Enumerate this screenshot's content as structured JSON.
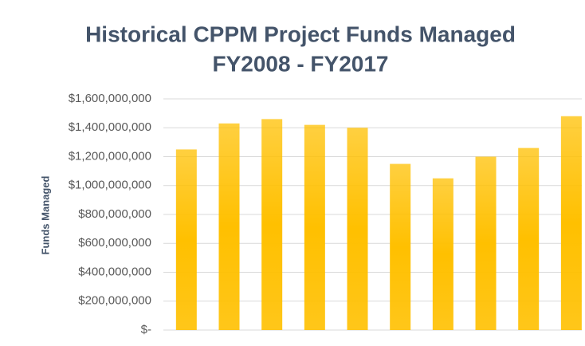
{
  "chart_data": {
    "type": "bar",
    "title_lines": [
      "Historical CPPM Project Funds Managed",
      "FY2008 - FY2017"
    ],
    "y_label": "Funds Managed",
    "categories": [
      null,
      null,
      null,
      null,
      null,
      null,
      null,
      null,
      null,
      null
    ],
    "values": [
      1250000000,
      1430000000,
      1460000000,
      1420000000,
      1400000000,
      1150000000,
      1050000000,
      1200000000,
      1260000000,
      1480000000
    ],
    "color": "#ffc000",
    "ylim": [
      0,
      1600000000
    ],
    "yticks": [
      {
        "value": 0,
        "label": "$-"
      },
      {
        "value": 200000000,
        "label": "$200,000,000"
      },
      {
        "value": 400000000,
        "label": "$400,000,000"
      },
      {
        "value": 600000000,
        "label": "$600,000,000"
      },
      {
        "value": 800000000,
        "label": "$800,000,000"
      },
      {
        "value": 1000000000,
        "label": "$1,000,000,000"
      },
      {
        "value": 1200000000,
        "label": "$1,200,000,000"
      },
      {
        "value": 1400000000,
        "label": "$1,400,000,000"
      },
      {
        "value": 1600000000,
        "label": "$1,600,000,000"
      }
    ],
    "grid": true
  }
}
